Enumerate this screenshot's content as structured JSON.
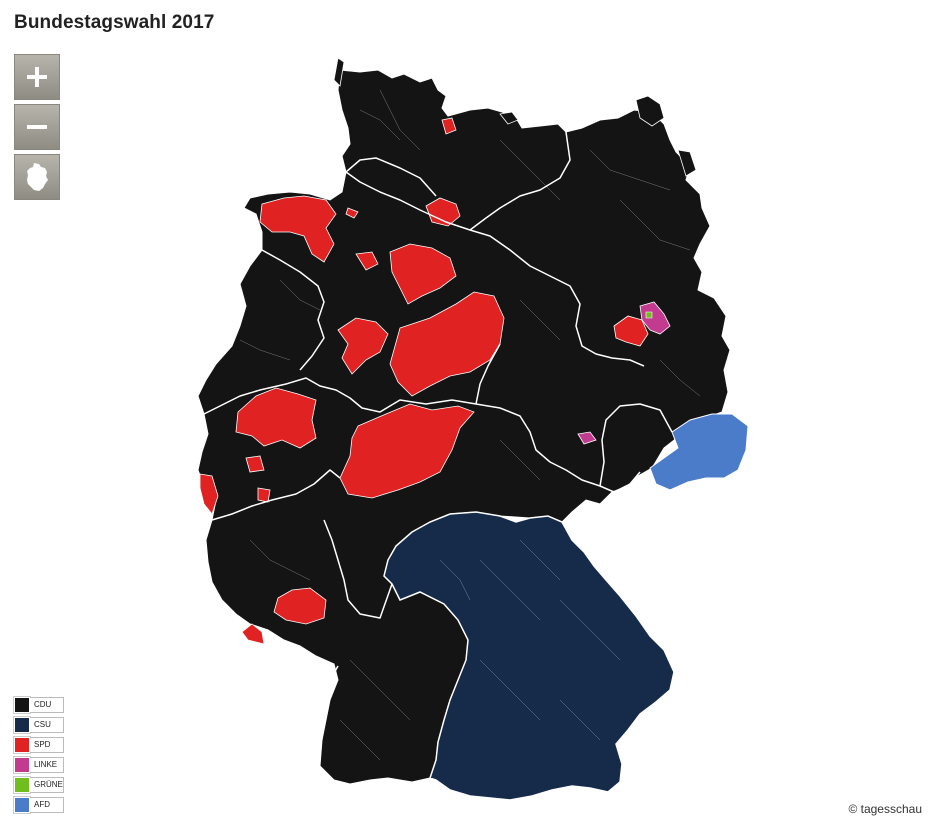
{
  "header": {
    "title": "Bundestagswahl 2017"
  },
  "controls": [
    {
      "name": "zoom-in",
      "icon": "plus-icon"
    },
    {
      "name": "zoom-out",
      "icon": "minus-icon"
    },
    {
      "name": "reset-view",
      "icon": "germany-outline-icon"
    }
  ],
  "legend": {
    "items": [
      {
        "label": "CDU",
        "color": "#141414"
      },
      {
        "label": "CSU",
        "color": "#162a4a"
      },
      {
        "label": "SPD",
        "color": "#e02222"
      },
      {
        "label": "LINKE",
        "color": "#c23b8e"
      },
      {
        "label": "GRÜNE",
        "color": "#6fbe1e"
      },
      {
        "label": "AFD",
        "color": "#4a7cc9"
      }
    ]
  },
  "map": {
    "colors": {
      "cdu": "#141414",
      "csu": "#162a4a",
      "spd": "#e02222",
      "linke": "#c23b8e",
      "afd": "#4a7cc9",
      "border": "#ffffff"
    }
  },
  "footer": {
    "credit": "© tagesschau"
  }
}
